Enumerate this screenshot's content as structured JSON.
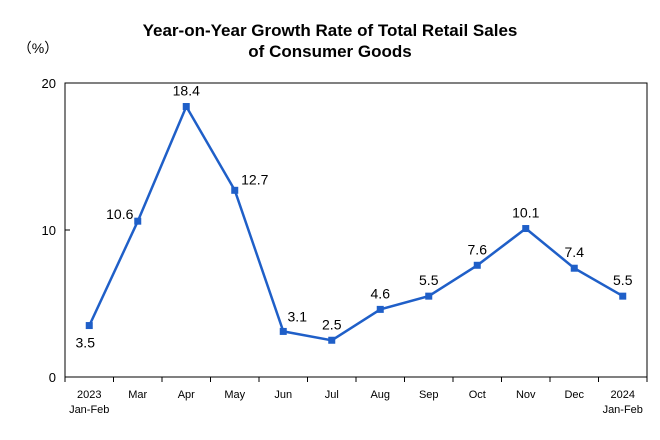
{
  "chart_data": {
    "type": "line",
    "title": "Year-on-Year Growth Rate of Total Retail Sales\nof Consumer Goods",
    "ylabel": "（%）",
    "xlabel": "",
    "ylim": [
      0,
      20
    ],
    "yticks": [
      "0",
      "10",
      "20"
    ],
    "grid": false,
    "legend": "none",
    "color": "#1f5fc8",
    "categories": [
      [
        "2023",
        "Jan-Feb"
      ],
      [
        "Mar"
      ],
      [
        "Apr"
      ],
      [
        "May"
      ],
      [
        "Jun"
      ],
      [
        "Jul"
      ],
      [
        "Aug"
      ],
      [
        "Sep"
      ],
      [
        "Oct"
      ],
      [
        "Nov"
      ],
      [
        "Dec"
      ],
      [
        "2024",
        "Jan-Feb"
      ]
    ],
    "values": [
      3.5,
      10.6,
      18.4,
      12.7,
      3.1,
      2.5,
      4.6,
      5.5,
      7.6,
      10.1,
      7.4,
      5.5
    ],
    "data_labels": [
      "3.5",
      "10.6",
      "18.4",
      "12.7",
      "3.1",
      "2.5",
      "4.6",
      "5.5",
      "7.6",
      "10.1",
      "7.4",
      "5.5"
    ]
  }
}
